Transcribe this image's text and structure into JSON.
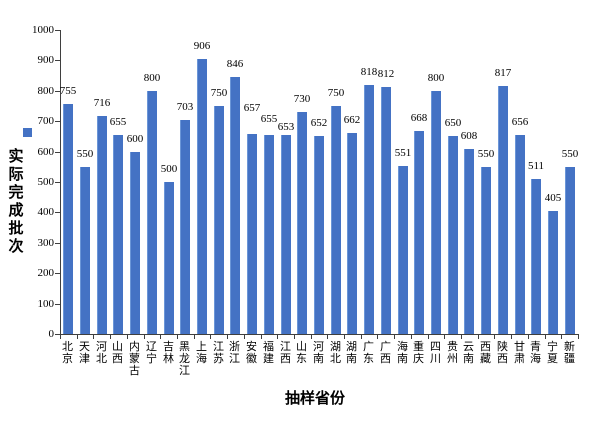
{
  "chart_data": {
    "type": "bar",
    "categories": [
      "北京",
      "天津",
      "河北",
      "山西",
      "内蒙古",
      "辽宁",
      "吉林",
      "黑龙江",
      "上海",
      "江苏",
      "浙江",
      "安徽",
      "福建",
      "江西",
      "山东",
      "河南",
      "湖北",
      "湖南",
      "广东",
      "广西",
      "海南",
      "重庆",
      "四川",
      "贵州",
      "云南",
      "西藏",
      "陕西",
      "甘肃",
      "青海",
      "宁夏",
      "新疆"
    ],
    "values": [
      755,
      550,
      716,
      655,
      600,
      800,
      500,
      703,
      906,
      750,
      846,
      657,
      655,
      653,
      730,
      652,
      750,
      662,
      818,
      812,
      551,
      668,
      800,
      650,
      608,
      550,
      817,
      656,
      511,
      405,
      550
    ],
    "title": "",
    "xlabel": "抽样省份",
    "ylabel": "实际完成批次",
    "ylim": [
      0,
      1000
    ],
    "ytick_step": 100,
    "grid": false,
    "legend_position": "left",
    "bar_color": "#4472C4",
    "axis_color": "#3f3f3f",
    "text_color": "#000000",
    "value_label_dy_default": 13,
    "value_label_dy_overrides": {
      "11": 26,
      "12": 16,
      "13": 8
    }
  }
}
